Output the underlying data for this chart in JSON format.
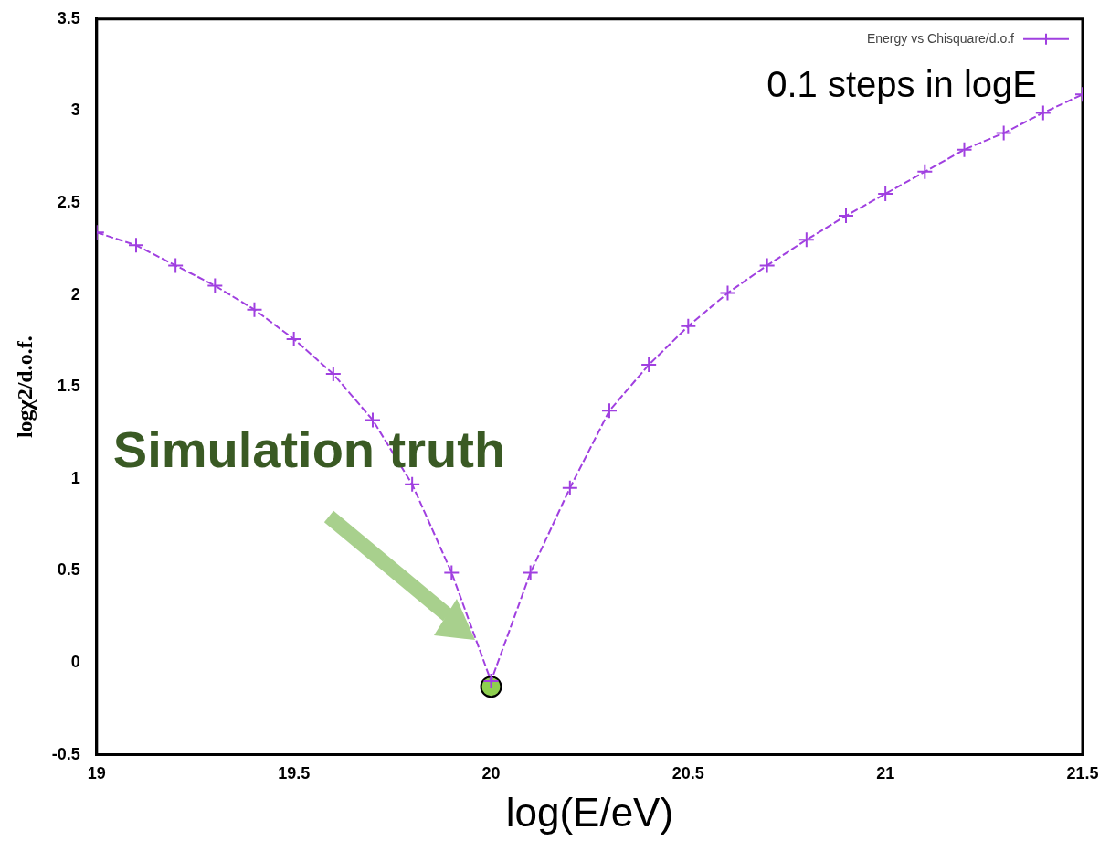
{
  "chart_data": {
    "type": "line",
    "xlabel": "log(E/eV)",
    "ylabel": "logχ2/d.o.f.",
    "xlim": [
      19,
      21.5
    ],
    "xticks": [
      19,
      19.5,
      20,
      20.5,
      21,
      21.5
    ],
    "ylim": [
      -0.5,
      3.5
    ],
    "yticks": [
      -0.5,
      0,
      0.5,
      1,
      1.5,
      2,
      2.5,
      3,
      3.5
    ],
    "grid": false,
    "legend": "top right",
    "marker": "cross",
    "line_style": "dashed",
    "series": [
      {
        "name": "Energy vs Chisquare/d.o.f",
        "color": "#a040e0",
        "x": [
          19.0,
          19.1,
          19.2,
          19.3,
          19.4,
          19.5,
          19.6,
          19.7,
          19.8,
          19.9,
          20.0,
          20.1,
          20.2,
          20.3,
          20.4,
          20.5,
          20.6,
          20.7,
          20.8,
          20.9,
          21.0,
          21.1,
          21.2,
          21.3,
          21.4,
          21.5
        ],
        "values": [
          2.34,
          2.27,
          2.16,
          2.05,
          1.92,
          1.76,
          1.57,
          1.32,
          0.97,
          0.49,
          -0.1,
          0.49,
          0.95,
          1.37,
          1.62,
          1.83,
          2.01,
          2.16,
          2.3,
          2.43,
          2.55,
          2.67,
          2.79,
          2.88,
          2.99,
          3.09
        ]
      },
      {
        "type": "scatter",
        "marker": "circle",
        "color": "#8ecf4f",
        "x": [
          20
        ],
        "values": [
          -0.13
        ]
      }
    ],
    "annotations": [
      "0.1 steps in logE",
      "Simulation truth"
    ]
  }
}
